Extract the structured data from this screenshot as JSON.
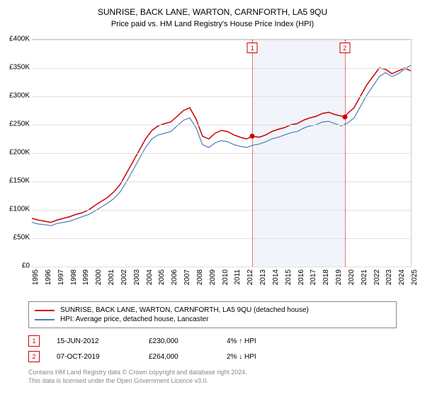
{
  "title": "SUNRISE, BACK LANE, WARTON, CARNFORTH, LA5 9QU",
  "subtitle": "Price paid vs. HM Land Registry's House Price Index (HPI)",
  "chart": {
    "type": "line",
    "background_color": "#ffffff",
    "grid_color": "#e0e0e0",
    "axis_color": "#cccccc",
    "label_fontsize": 10,
    "ylim": [
      0,
      400000
    ],
    "ytick_step": 50000,
    "y_labels": [
      "£0",
      "£50K",
      "£100K",
      "£150K",
      "£200K",
      "£250K",
      "£300K",
      "£350K",
      "£400K"
    ],
    "xlim": [
      1995,
      2025
    ],
    "x_labels": [
      "1995",
      "1996",
      "1997",
      "1998",
      "1999",
      "2000",
      "2001",
      "2002",
      "2003",
      "2004",
      "2005",
      "2006",
      "2007",
      "2008",
      "2009",
      "2010",
      "2011",
      "2012",
      "2013",
      "2014",
      "2015",
      "2016",
      "2017",
      "2018",
      "2019",
      "2020",
      "2021",
      "2022",
      "2023",
      "2024",
      "2025"
    ],
    "series": [
      {
        "name": "property",
        "label": "SUNRISE, BACK LANE, WARTON, CARNFORTH, LA5 9QU (detached house)",
        "color": "#cc0000",
        "line_width": 1.5,
        "points": [
          [
            1995,
            85000
          ],
          [
            1995.5,
            82000
          ],
          [
            1996,
            80000
          ],
          [
            1996.5,
            78000
          ],
          [
            1997,
            82000
          ],
          [
            1997.5,
            85000
          ],
          [
            1998,
            88000
          ],
          [
            1998.5,
            92000
          ],
          [
            1999,
            95000
          ],
          [
            1999.5,
            100000
          ],
          [
            2000,
            108000
          ],
          [
            2000.5,
            115000
          ],
          [
            2001,
            122000
          ],
          [
            2001.5,
            132000
          ],
          [
            2002,
            145000
          ],
          [
            2002.5,
            165000
          ],
          [
            2003,
            185000
          ],
          [
            2003.5,
            205000
          ],
          [
            2004,
            225000
          ],
          [
            2004.5,
            240000
          ],
          [
            2005,
            248000
          ],
          [
            2005.5,
            252000
          ],
          [
            2006,
            255000
          ],
          [
            2006.5,
            265000
          ],
          [
            2007,
            275000
          ],
          [
            2007.5,
            280000
          ],
          [
            2008,
            260000
          ],
          [
            2008.5,
            230000
          ],
          [
            2009,
            225000
          ],
          [
            2009.5,
            235000
          ],
          [
            2010,
            240000
          ],
          [
            2010.5,
            238000
          ],
          [
            2011,
            232000
          ],
          [
            2011.5,
            228000
          ],
          [
            2012,
            225000
          ],
          [
            2012.46,
            230000
          ],
          [
            2013,
            228000
          ],
          [
            2013.5,
            232000
          ],
          [
            2014,
            238000
          ],
          [
            2014.5,
            242000
          ],
          [
            2015,
            245000
          ],
          [
            2015.5,
            250000
          ],
          [
            2016,
            252000
          ],
          [
            2016.5,
            258000
          ],
          [
            2017,
            262000
          ],
          [
            2017.5,
            265000
          ],
          [
            2018,
            270000
          ],
          [
            2018.5,
            272000
          ],
          [
            2019,
            268000
          ],
          [
            2019.77,
            264000
          ],
          [
            2020,
            270000
          ],
          [
            2020.5,
            280000
          ],
          [
            2021,
            300000
          ],
          [
            2021.5,
            320000
          ],
          [
            2022,
            335000
          ],
          [
            2022.5,
            350000
          ],
          [
            2023,
            348000
          ],
          [
            2023.5,
            340000
          ],
          [
            2024,
            345000
          ],
          [
            2024.5,
            350000
          ],
          [
            2025,
            345000
          ]
        ]
      },
      {
        "name": "hpi",
        "label": "HPI: Average price, detached house, Lancaster",
        "color": "#4a7ebb",
        "line_width": 1.2,
        "points": [
          [
            1995,
            78000
          ],
          [
            1995.5,
            75000
          ],
          [
            1996,
            74000
          ],
          [
            1996.5,
            72000
          ],
          [
            1997,
            76000
          ],
          [
            1997.5,
            78000
          ],
          [
            1998,
            80000
          ],
          [
            1998.5,
            84000
          ],
          [
            1999,
            88000
          ],
          [
            1999.5,
            92000
          ],
          [
            2000,
            98000
          ],
          [
            2000.5,
            105000
          ],
          [
            2001,
            112000
          ],
          [
            2001.5,
            120000
          ],
          [
            2002,
            132000
          ],
          [
            2002.5,
            150000
          ],
          [
            2003,
            170000
          ],
          [
            2003.5,
            190000
          ],
          [
            2004,
            210000
          ],
          [
            2004.5,
            225000
          ],
          [
            2005,
            232000
          ],
          [
            2005.5,
            235000
          ],
          [
            2006,
            238000
          ],
          [
            2006.5,
            248000
          ],
          [
            2007,
            258000
          ],
          [
            2007.5,
            262000
          ],
          [
            2008,
            245000
          ],
          [
            2008.5,
            215000
          ],
          [
            2009,
            210000
          ],
          [
            2009.5,
            218000
          ],
          [
            2010,
            222000
          ],
          [
            2010.5,
            220000
          ],
          [
            2011,
            215000
          ],
          [
            2011.5,
            212000
          ],
          [
            2012,
            210000
          ],
          [
            2012.5,
            214000
          ],
          [
            2013,
            216000
          ],
          [
            2013.5,
            220000
          ],
          [
            2014,
            225000
          ],
          [
            2014.5,
            228000
          ],
          [
            2015,
            232000
          ],
          [
            2015.5,
            236000
          ],
          [
            2016,
            238000
          ],
          [
            2016.5,
            244000
          ],
          [
            2017,
            248000
          ],
          [
            2017.5,
            250000
          ],
          [
            2018,
            255000
          ],
          [
            2018.5,
            256000
          ],
          [
            2019,
            252000
          ],
          [
            2019.5,
            248000
          ],
          [
            2020,
            253000
          ],
          [
            2020.5,
            262000
          ],
          [
            2021,
            282000
          ],
          [
            2021.5,
            302000
          ],
          [
            2022,
            318000
          ],
          [
            2022.5,
            335000
          ],
          [
            2023,
            342000
          ],
          [
            2023.5,
            335000
          ],
          [
            2024,
            340000
          ],
          [
            2024.5,
            348000
          ],
          [
            2025,
            355000
          ]
        ]
      }
    ],
    "shaded_region": {
      "start": 2012.46,
      "end": 2019.77,
      "color": "rgba(200,210,235,0.25)"
    },
    "markers": [
      {
        "n": "1",
        "x": 2012.46,
        "y": 230000,
        "color": "#cc0000"
      },
      {
        "n": "2",
        "x": 2019.77,
        "y": 264000,
        "color": "#cc0000"
      }
    ]
  },
  "legend": {
    "series1_label": "SUNRISE, BACK LANE, WARTON, CARNFORTH, LA5 9QU (detached house)",
    "series2_label": "HPI: Average price, detached house, Lancaster"
  },
  "marker_table": [
    {
      "n": "1",
      "date": "15-JUN-2012",
      "price": "£230,000",
      "delta": "4% ↑ HPI"
    },
    {
      "n": "2",
      "date": "07-OCT-2019",
      "price": "£264,000",
      "delta": "2% ↓ HPI"
    }
  ],
  "footer": {
    "line1": "Contains HM Land Registry data © Crown copyright and database right 2024.",
    "line2": "This data is licensed under the Open Government Licence v3.0."
  }
}
